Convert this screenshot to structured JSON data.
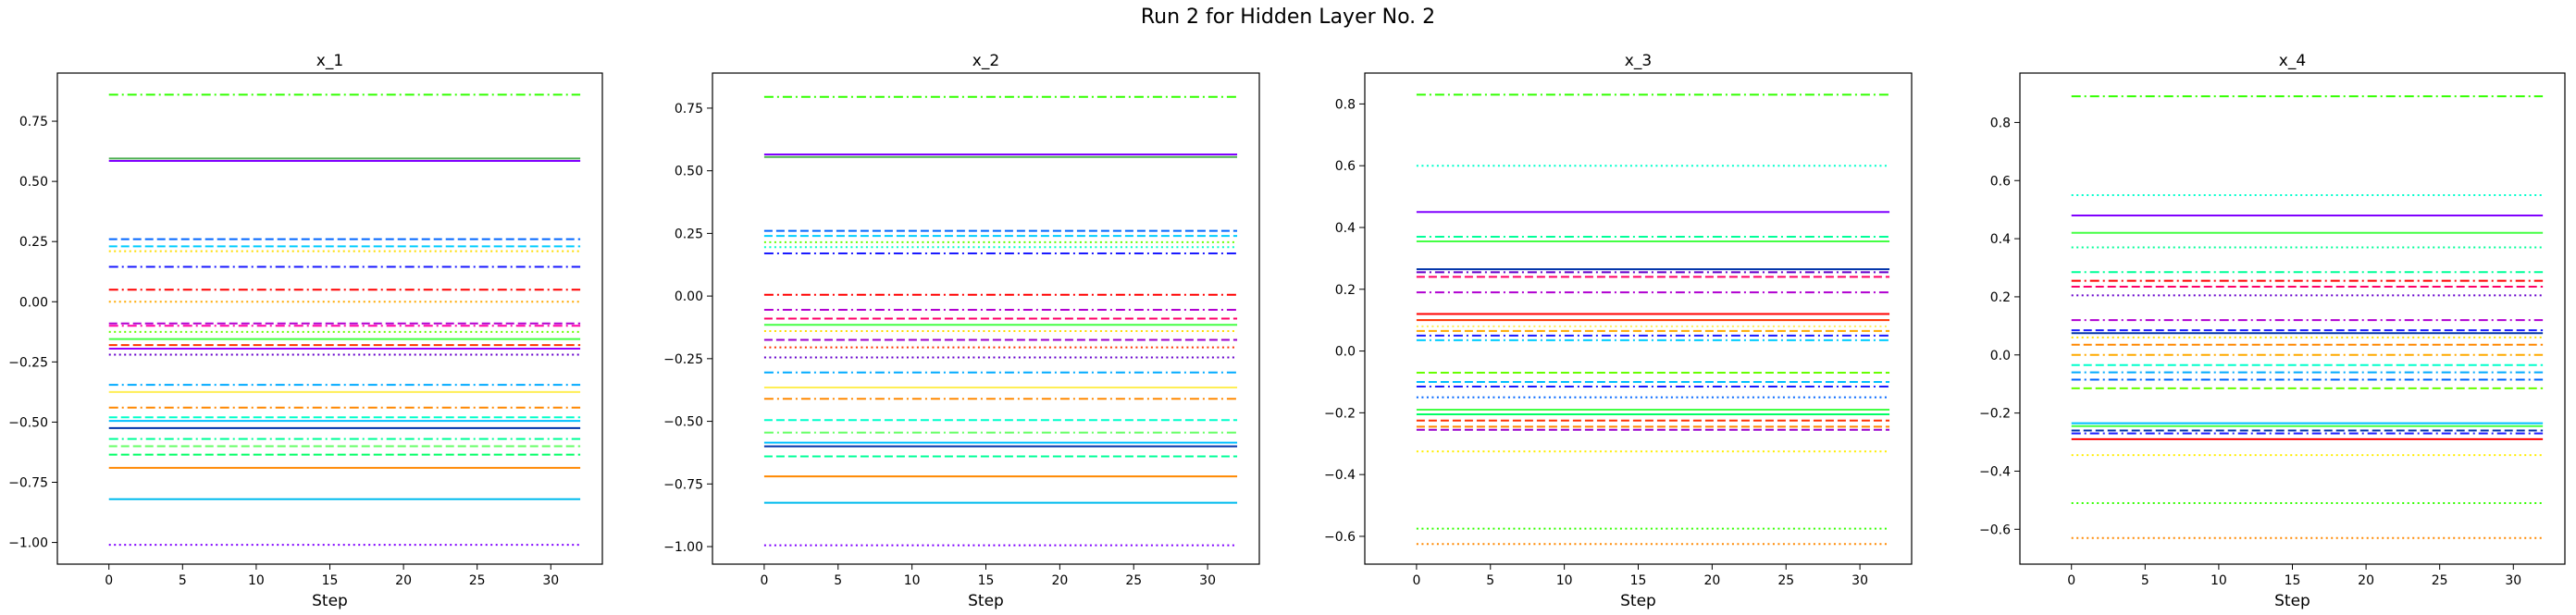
{
  "figure": {
    "title": "Run 2 for Hidden Layer No. 2"
  },
  "chart_data": [
    {
      "type": "line",
      "title": "x_1",
      "xlabel": "Step",
      "ylabel": "",
      "xlim": [
        -3.5,
        33.5
      ],
      "ylim": [
        -1.09,
        0.95
      ],
      "xticks": [
        0,
        5,
        10,
        15,
        20,
        25,
        30
      ],
      "yticks": [
        -1.0,
        -0.75,
        -0.5,
        -0.25,
        0.0,
        0.25,
        0.5,
        0.75
      ],
      "ytick_labels": [
        "−1.00",
        "−0.75",
        "−0.50",
        "−0.25",
        "0.00",
        "0.25",
        "0.50",
        "0.75"
      ],
      "x_range": [
        0,
        32
      ],
      "grid": false,
      "series": [
        {
          "value": 0.86,
          "color": "#33ff00",
          "style": "dashdot"
        },
        {
          "value": 0.595,
          "color": "#4caf50",
          "style": "solid"
        },
        {
          "value": 0.585,
          "color": "#8000ff",
          "style": "solid"
        },
        {
          "value": 0.26,
          "color": "#0066ff",
          "style": "dashed"
        },
        {
          "value": 0.23,
          "color": "#00ccff",
          "style": "dashed"
        },
        {
          "value": 0.21,
          "color": "#ffdd00",
          "style": "dotted"
        },
        {
          "value": 0.145,
          "color": "#1a1aff",
          "style": "dashdot"
        },
        {
          "value": 0.05,
          "color": "#ff0000",
          "style": "dashdot"
        },
        {
          "value": 0.0,
          "color": "#ffaa00",
          "style": "dotted"
        },
        {
          "value": -0.09,
          "color": "#b000d0",
          "style": "dashed"
        },
        {
          "value": -0.1,
          "color": "#ff00aa",
          "style": "dashdot"
        },
        {
          "value": -0.125,
          "color": "#66ff00",
          "style": "dotted"
        },
        {
          "value": -0.155,
          "color": "#44ff44",
          "style": "solid"
        },
        {
          "value": -0.18,
          "color": "#ff3300",
          "style": "dashed"
        },
        {
          "value": -0.195,
          "color": "#9900ff",
          "style": "solid"
        },
        {
          "value": -0.22,
          "color": "#6600cc",
          "style": "dotted"
        },
        {
          "value": -0.345,
          "color": "#00aaff",
          "style": "dashdot"
        },
        {
          "value": -0.375,
          "color": "#ffee55",
          "style": "solid"
        },
        {
          "value": -0.44,
          "color": "#ff8800",
          "style": "dashdot"
        },
        {
          "value": -0.48,
          "color": "#00ffcc",
          "style": "dashed"
        },
        {
          "value": -0.495,
          "color": "#00bfff",
          "style": "solid"
        },
        {
          "value": -0.525,
          "color": "#0033aa",
          "style": "solid"
        },
        {
          "value": -0.57,
          "color": "#00ff99",
          "style": "dashdot"
        },
        {
          "value": -0.6,
          "color": "#66ff66",
          "style": "dashed"
        },
        {
          "value": -0.635,
          "color": "#00ff66",
          "style": "dashed"
        },
        {
          "value": -0.69,
          "color": "#ff8800",
          "style": "solid"
        },
        {
          "value": -0.82,
          "color": "#00bbee",
          "style": "solid"
        },
        {
          "value": -1.01,
          "color": "#7f00ff",
          "style": "dotted"
        }
      ]
    },
    {
      "type": "line",
      "title": "x_2",
      "xlabel": "Step",
      "ylabel": "",
      "xlim": [
        -3.5,
        33.5
      ],
      "ylim": [
        -1.07,
        0.89
      ],
      "xticks": [
        0,
        5,
        10,
        15,
        20,
        25,
        30
      ],
      "yticks": [
        -1.0,
        -0.75,
        -0.5,
        -0.25,
        0.0,
        0.25,
        0.5,
        0.75
      ],
      "ytick_labels": [
        "−1.00",
        "−0.75",
        "−0.50",
        "−0.25",
        "0.00",
        "0.25",
        "0.50",
        "0.75"
      ],
      "x_range": [
        0,
        32
      ],
      "grid": false,
      "series": [
        {
          "value": 0.795,
          "color": "#33ff00",
          "style": "dashdot"
        },
        {
          "value": 0.565,
          "color": "#8000ff",
          "style": "solid"
        },
        {
          "value": 0.555,
          "color": "#4caf50",
          "style": "solid"
        },
        {
          "value": 0.26,
          "color": "#0066ff",
          "style": "dashed"
        },
        {
          "value": 0.24,
          "color": "#00ccff",
          "style": "dashed"
        },
        {
          "value": 0.215,
          "color": "#66ff00",
          "style": "dotted"
        },
        {
          "value": 0.195,
          "color": "#00ffcc",
          "style": "dotted"
        },
        {
          "value": 0.17,
          "color": "#1a1aff",
          "style": "dashdot"
        },
        {
          "value": 0.005,
          "color": "#ff0000",
          "style": "dashdot"
        },
        {
          "value": -0.055,
          "color": "#b000d0",
          "style": "dashdot"
        },
        {
          "value": -0.09,
          "color": "#ff0066",
          "style": "dashed"
        },
        {
          "value": -0.115,
          "color": "#44ff44",
          "style": "solid"
        },
        {
          "value": -0.14,
          "color": "#ffdd00",
          "style": "dotted"
        },
        {
          "value": -0.175,
          "color": "#9900cc",
          "style": "dashed"
        },
        {
          "value": -0.205,
          "color": "#ff3300",
          "style": "dotted"
        },
        {
          "value": -0.245,
          "color": "#6600cc",
          "style": "dotted"
        },
        {
          "value": -0.305,
          "color": "#00aaff",
          "style": "dashdot"
        },
        {
          "value": -0.365,
          "color": "#ffee55",
          "style": "solid"
        },
        {
          "value": -0.41,
          "color": "#ff8800",
          "style": "dashdot"
        },
        {
          "value": -0.495,
          "color": "#00ffcc",
          "style": "dashed"
        },
        {
          "value": -0.545,
          "color": "#66ff66",
          "style": "dashdot"
        },
        {
          "value": -0.585,
          "color": "#00bfff",
          "style": "solid"
        },
        {
          "value": -0.6,
          "color": "#0033aa",
          "style": "solid"
        },
        {
          "value": -0.64,
          "color": "#00ff99",
          "style": "dashed"
        },
        {
          "value": -0.72,
          "color": "#ff8800",
          "style": "solid"
        },
        {
          "value": -0.825,
          "color": "#00bbee",
          "style": "solid"
        },
        {
          "value": -0.995,
          "color": "#7f00ff",
          "style": "dotted"
        }
      ]
    },
    {
      "type": "line",
      "title": "x_3",
      "xlabel": "Step",
      "ylabel": "",
      "xlim": [
        -3.5,
        33.5
      ],
      "ylim": [
        -0.69,
        0.9
      ],
      "xticks": [
        0,
        5,
        10,
        15,
        20,
        25,
        30
      ],
      "yticks": [
        -0.6,
        -0.4,
        -0.2,
        0.0,
        0.2,
        0.4,
        0.6,
        0.8
      ],
      "ytick_labels": [
        "−0.6",
        "−0.4",
        "−0.2",
        "0.0",
        "0.2",
        "0.4",
        "0.6",
        "0.8"
      ],
      "x_range": [
        0,
        32
      ],
      "grid": false,
      "series": [
        {
          "value": 0.83,
          "color": "#33ff00",
          "style": "dashdot"
        },
        {
          "value": 0.6,
          "color": "#00ffcc",
          "style": "dotted"
        },
        {
          "value": 0.45,
          "color": "#8000ff",
          "style": "solid"
        },
        {
          "value": 0.37,
          "color": "#00ff99",
          "style": "dashdot"
        },
        {
          "value": 0.355,
          "color": "#44ff44",
          "style": "solid"
        },
        {
          "value": 0.265,
          "color": "#0033aa",
          "style": "solid"
        },
        {
          "value": 0.255,
          "color": "#6600cc",
          "style": "dashdot"
        },
        {
          "value": 0.24,
          "color": "#ff0066",
          "style": "dashed"
        },
        {
          "value": 0.19,
          "color": "#b000d0",
          "style": "dashdot"
        },
        {
          "value": 0.12,
          "color": "#ff0000",
          "style": "solid"
        },
        {
          "value": 0.1,
          "color": "#ff3300",
          "style": "solid"
        },
        {
          "value": 0.08,
          "color": "#ffee55",
          "style": "dotted"
        },
        {
          "value": 0.065,
          "color": "#ffaa00",
          "style": "dashed"
        },
        {
          "value": 0.05,
          "color": "#1a1aff",
          "style": "dashdot"
        },
        {
          "value": 0.035,
          "color": "#00ccff",
          "style": "dashdot"
        },
        {
          "value": -0.07,
          "color": "#66ff00",
          "style": "dashed"
        },
        {
          "value": -0.1,
          "color": "#00bfff",
          "style": "dashed"
        },
        {
          "value": -0.115,
          "color": "#1a1aff",
          "style": "dashdot"
        },
        {
          "value": -0.15,
          "color": "#0066ff",
          "style": "dotted"
        },
        {
          "value": -0.19,
          "color": "#44ff44",
          "style": "solid"
        },
        {
          "value": -0.205,
          "color": "#00ff66",
          "style": "solid"
        },
        {
          "value": -0.225,
          "color": "#ff3300",
          "style": "dashed"
        },
        {
          "value": -0.245,
          "color": "#ff8800",
          "style": "dashed"
        },
        {
          "value": -0.255,
          "color": "#9900cc",
          "style": "dashed"
        },
        {
          "value": -0.325,
          "color": "#ffee00",
          "style": "dotted"
        },
        {
          "value": -0.575,
          "color": "#33ff00",
          "style": "dotted"
        },
        {
          "value": -0.625,
          "color": "#ff8800",
          "style": "dotted"
        }
      ]
    },
    {
      "type": "line",
      "title": "x_4",
      "xlabel": "Step",
      "ylabel": "",
      "xlim": [
        -3.5,
        33.5
      ],
      "ylim": [
        -0.72,
        0.97
      ],
      "xticks": [
        0,
        5,
        10,
        15,
        20,
        25,
        30
      ],
      "yticks": [
        -0.6,
        -0.4,
        -0.2,
        0.0,
        0.2,
        0.4,
        0.6,
        0.8
      ],
      "ytick_labels": [
        "−0.6",
        "−0.4",
        "−0.2",
        "0.0",
        "0.2",
        "0.4",
        "0.6",
        "0.8"
      ],
      "x_range": [
        0,
        32
      ],
      "grid": false,
      "series": [
        {
          "value": 0.89,
          "color": "#33ff00",
          "style": "dashdot"
        },
        {
          "value": 0.55,
          "color": "#00ffcc",
          "style": "dotted"
        },
        {
          "value": 0.48,
          "color": "#8000ff",
          "style": "solid"
        },
        {
          "value": 0.42,
          "color": "#44ff44",
          "style": "solid"
        },
        {
          "value": 0.37,
          "color": "#00ff99",
          "style": "dotted"
        },
        {
          "value": 0.285,
          "color": "#00ff99",
          "style": "dashdot"
        },
        {
          "value": 0.255,
          "color": "#ff0000",
          "style": "dashdot"
        },
        {
          "value": 0.235,
          "color": "#ff0066",
          "style": "dashed"
        },
        {
          "value": 0.205,
          "color": "#6600cc",
          "style": "dotted"
        },
        {
          "value": 0.12,
          "color": "#b000d0",
          "style": "dashdot"
        },
        {
          "value": 0.085,
          "color": "#1a1aff",
          "style": "dashed"
        },
        {
          "value": 0.075,
          "color": "#0033aa",
          "style": "solid"
        },
        {
          "value": 0.06,
          "color": "#ffdd00",
          "style": "dotted"
        },
        {
          "value": 0.035,
          "color": "#ff8800",
          "style": "dashed"
        },
        {
          "value": 0.0,
          "color": "#ffaa00",
          "style": "dashdot"
        },
        {
          "value": -0.035,
          "color": "#00ffcc",
          "style": "dashed"
        },
        {
          "value": -0.06,
          "color": "#00aaff",
          "style": "dashdot"
        },
        {
          "value": -0.085,
          "color": "#0066ff",
          "style": "dashdot"
        },
        {
          "value": -0.115,
          "color": "#66ff00",
          "style": "dashed"
        },
        {
          "value": -0.235,
          "color": "#00bfff",
          "style": "solid"
        },
        {
          "value": -0.245,
          "color": "#44ff44",
          "style": "solid"
        },
        {
          "value": -0.26,
          "color": "#0033aa",
          "style": "dashed"
        },
        {
          "value": -0.27,
          "color": "#1a1aff",
          "style": "dashdot"
        },
        {
          "value": -0.29,
          "color": "#ff0000",
          "style": "solid"
        },
        {
          "value": -0.345,
          "color": "#ffee00",
          "style": "dotted"
        },
        {
          "value": -0.51,
          "color": "#33ff00",
          "style": "dotted"
        },
        {
          "value": -0.63,
          "color": "#ff8800",
          "style": "dotted"
        }
      ]
    }
  ]
}
